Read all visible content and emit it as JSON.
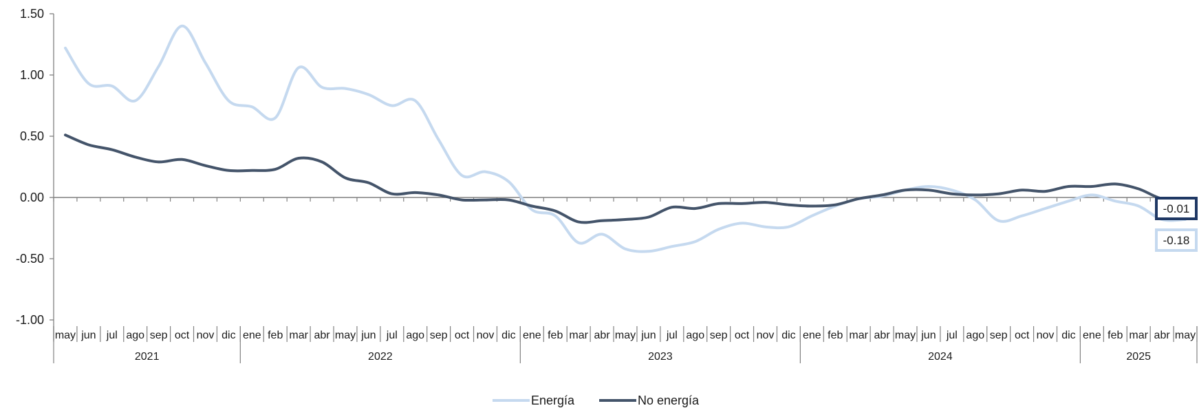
{
  "chart_data": {
    "type": "line",
    "title": "",
    "xlabel": "",
    "ylabel": "",
    "ylim": [
      -1.0,
      1.5
    ],
    "yticks": [
      "1.50",
      "1.00",
      "0.50",
      "0.00",
      "-0.50",
      "-1.00"
    ],
    "ytick_values": [
      1.5,
      1.0,
      0.5,
      0.0,
      -0.5,
      -1.0
    ],
    "grid": false,
    "legend_position": "bottom-center",
    "x": [
      "may",
      "jun",
      "jul",
      "ago",
      "sep",
      "oct",
      "nov",
      "dic",
      "ene",
      "feb",
      "mar",
      "abr",
      "may",
      "jun",
      "jul",
      "ago",
      "sep",
      "oct",
      "nov",
      "dic",
      "ene",
      "feb",
      "mar",
      "abr",
      "may",
      "jun",
      "jul",
      "ago",
      "sep",
      "oct",
      "nov",
      "dic",
      "ene",
      "feb",
      "mar",
      "abr",
      "may",
      "jun",
      "jul",
      "ago",
      "sep",
      "oct",
      "nov",
      "dic",
      "ene",
      "feb",
      "mar",
      "abr",
      "may"
    ],
    "years": [
      {
        "label": "2021",
        "start": 0,
        "end": 7
      },
      {
        "label": "2022",
        "start": 8,
        "end": 19
      },
      {
        "label": "2023",
        "start": 20,
        "end": 31
      },
      {
        "label": "2024",
        "start": 32,
        "end": 43
      },
      {
        "label": "2025",
        "start": 44,
        "end": 48
      }
    ],
    "series": [
      {
        "name": "Energía",
        "color": "#c5d9ef",
        "values": [
          1.22,
          0.93,
          0.91,
          0.79,
          1.07,
          1.4,
          1.1,
          0.79,
          0.74,
          0.65,
          1.06,
          0.9,
          0.89,
          0.84,
          0.75,
          0.79,
          0.47,
          0.18,
          0.21,
          0.13,
          -0.1,
          -0.15,
          -0.37,
          -0.3,
          -0.42,
          -0.44,
          -0.4,
          -0.36,
          -0.26,
          -0.21,
          -0.24,
          -0.24,
          -0.15,
          -0.07,
          -0.01,
          0.01,
          0.06,
          0.09,
          0.06,
          -0.02,
          -0.19,
          -0.15,
          -0.09,
          -0.03,
          0.02,
          -0.03,
          -0.07,
          -0.18,
          -0.18
        ],
        "end_label": "-0.18"
      },
      {
        "name": "No energía",
        "color": "#44546a",
        "values": [
          0.51,
          0.43,
          0.39,
          0.33,
          0.29,
          0.31,
          0.26,
          0.22,
          0.22,
          0.23,
          0.32,
          0.29,
          0.16,
          0.12,
          0.03,
          0.04,
          0.02,
          -0.02,
          -0.02,
          -0.02,
          -0.07,
          -0.11,
          -0.2,
          -0.19,
          -0.18,
          -0.16,
          -0.08,
          -0.09,
          -0.05,
          -0.05,
          -0.04,
          -0.06,
          -0.07,
          -0.06,
          -0.01,
          0.02,
          0.06,
          0.06,
          0.03,
          0.02,
          0.03,
          0.06,
          0.05,
          0.09,
          0.09,
          0.11,
          0.07,
          -0.01,
          -0.01
        ],
        "end_label": "-0.01"
      }
    ]
  }
}
